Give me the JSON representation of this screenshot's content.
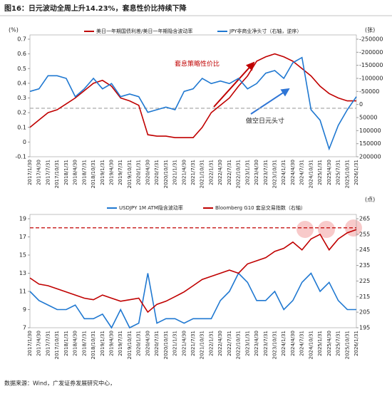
{
  "header": "图16：日元波动全周上升14.23%，套息性价比持续下降",
  "source": "数据来源：Wind，广发证券发展研究中心，",
  "chart_data": [
    {
      "type": "line",
      "ylabel": "(%)",
      "y2label": "(张)",
      "categories": [
        "2017/1/30",
        "2017/4/30",
        "2017/7/31",
        "2017/10/31",
        "2018/1/31",
        "2018/4/30",
        "2018/7/31",
        "2018/10/31",
        "2019/1/31",
        "2019/4/30",
        "2019/7/31",
        "2019/10/31",
        "2020/1/31",
        "2020/4/30",
        "2020/7/31",
        "2020/10/31",
        "2021/1/31",
        "2021/4/30",
        "2021/7/31",
        "2021/10/31",
        "2022/1/31",
        "2022/4/30",
        "2022/7/31",
        "2022/10/31",
        "2023/1/31",
        "2023/4/30",
        "2023/7/31",
        "2023/10/31",
        "2024/1/31",
        "2024/4/30",
        "2024/7/31",
        "2024/10/31",
        "2025/1/31",
        "2025/4/30",
        "2025/7/31",
        "2025/10/31",
        "2026/1/31"
      ],
      "series": [
        {
          "name": "美日一年期国债利差/美日一年期隐含波动率",
          "color": "#c00000",
          "values": [
            0.1,
            0.15,
            0.2,
            0.22,
            0.26,
            0.3,
            0.35,
            0.4,
            0.42,
            0.38,
            0.3,
            0.28,
            0.25,
            0.05,
            0.04,
            0.04,
            0.03,
            0.03,
            0.03,
            0.1,
            0.2,
            0.25,
            0.3,
            0.38,
            0.45,
            0.55,
            0.58,
            0.6,
            0.58,
            0.55,
            0.5,
            0.45,
            0.38,
            0.33,
            0.3,
            0.28,
            0.28
          ]
        },
        {
          "name": "JPY非商业净头寸（右轴，逆序）",
          "color": "#1f78d1",
          "axis": "y2",
          "values": [
            -50000,
            -60000,
            -110000,
            -110000,
            -100000,
            -30000,
            -60000,
            -100000,
            -60000,
            -80000,
            -30000,
            -40000,
            -30000,
            30000,
            20000,
            10000,
            20000,
            -50000,
            -60000,
            -100000,
            -80000,
            -90000,
            -80000,
            -100000,
            -60000,
            -80000,
            -120000,
            -130000,
            -100000,
            -160000,
            -180000,
            20000,
            60000,
            170000,
            80000,
            20000,
            -30000
          ]
        }
      ],
      "ylim": [
        -0.1,
        0.7
      ],
      "yticks": [
        -0.1,
        0,
        0.1,
        0.2,
        0.3,
        0.4,
        0.5,
        0.6,
        0.7
      ],
      "y2lim": [
        200000,
        -250000
      ],
      "y2ticks": [
        -250000,
        -200000,
        -150000,
        -100000,
        -50000,
        0,
        50000,
        100000,
        150000,
        200000
      ],
      "y2_reversed": true,
      "hline": {
        "value": 0.23,
        "color": "#a0a0a0"
      },
      "annotations": [
        "套息策略性价比",
        "做空日元头寸"
      ],
      "legend": "top"
    },
    {
      "type": "line",
      "y2label": "(点)",
      "categories": [
        "2017/1/30",
        "2017/4/30",
        "2017/7/31",
        "2017/10/31",
        "2018/1/31",
        "2018/4/30",
        "2018/7/31",
        "2018/10/31",
        "2019/1/31",
        "2019/4/30",
        "2019/7/31",
        "2019/10/31",
        "2020/1/31",
        "2020/4/30",
        "2020/7/31",
        "2020/10/31",
        "2021/1/31",
        "2021/4/30",
        "2021/7/31",
        "2021/10/31",
        "2022/1/31",
        "2022/4/30",
        "2022/7/31",
        "2022/10/31",
        "2023/1/31",
        "2023/4/30",
        "2023/7/31",
        "2023/10/31",
        "2024/1/31",
        "2024/4/30",
        "2024/7/31",
        "2024/10/31",
        "2025/1/31",
        "2025/4/30",
        "2025/7/31",
        "2025/10/31",
        "2026/1/31"
      ],
      "series": [
        {
          "name": "USDJPY 1M ATM隐含波动率",
          "color": "#1f78d1",
          "values": [
            11,
            10,
            9.5,
            9,
            9,
            9.5,
            8,
            8,
            8.5,
            7,
            9,
            7,
            7.5,
            13,
            7.5,
            8,
            8,
            7.5,
            8,
            8,
            8,
            10,
            11,
            13,
            12,
            10,
            10,
            11,
            9,
            10,
            12,
            13,
            11,
            12,
            10,
            9,
            9
          ]
        },
        {
          "name": "Bloomberg G10 套息交易指数（右轴）",
          "color": "#c00000",
          "axis": "y2",
          "values": [
            227,
            223,
            222,
            220,
            218,
            216,
            214,
            213,
            216,
            214,
            212,
            213,
            214,
            205,
            210,
            212,
            215,
            218,
            222,
            226,
            228,
            230,
            232,
            230,
            236,
            238,
            240,
            244,
            246,
            250,
            245,
            252,
            255,
            245,
            252,
            256,
            258
          ]
        }
      ],
      "ylim": [
        7,
        19
      ],
      "yticks": [
        7,
        9,
        11,
        13,
        15,
        17,
        19
      ],
      "y2lim": [
        195,
        265
      ],
      "y2ticks": [
        195,
        205,
        215,
        225,
        235,
        245,
        255,
        265
      ],
      "hline": {
        "value": 18,
        "color": "#c00000"
      },
      "legend": "top"
    }
  ]
}
